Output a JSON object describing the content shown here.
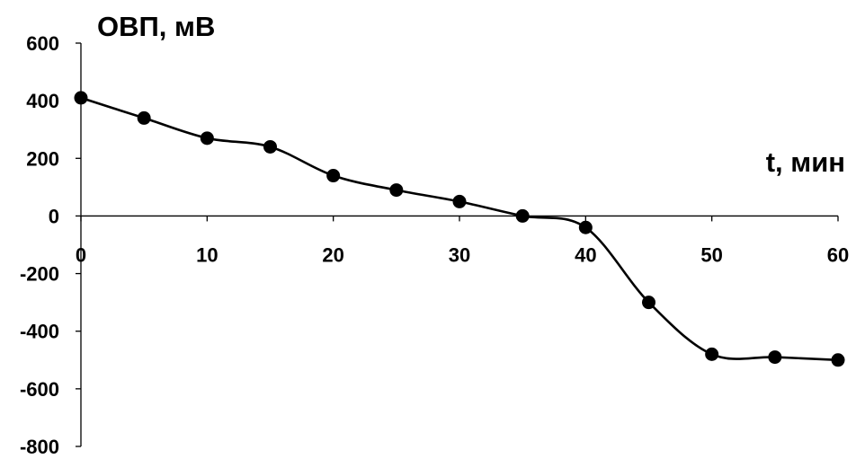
{
  "chart_data": {
    "type": "line",
    "ylabel": "ОВП, мВ",
    "xlabel": "t, мин",
    "xlim": [
      0,
      60
    ],
    "ylim": [
      -800,
      600
    ],
    "x_ticks": [
      0,
      10,
      20,
      30,
      40,
      50,
      60
    ],
    "x_tick_labels": [
      "0",
      "10",
      "20",
      "30",
      "40",
      "50",
      "60"
    ],
    "y_ticks": [
      600,
      400,
      200,
      0,
      -200,
      -400,
      -600,
      -800
    ],
    "y_tick_labels": [
      "600",
      "400",
      "200",
      "0",
      "-200",
      "-400",
      "-600",
      "-800"
    ],
    "grid": false,
    "line_color": "#000000",
    "marker": "filled-circle",
    "series": [
      {
        "x": [
          0,
          5,
          10,
          15,
          20,
          25,
          30,
          35,
          40,
          45,
          50,
          55,
          60
        ],
        "values": [
          410,
          340,
          270,
          240,
          140,
          90,
          50,
          0,
          -40,
          -300,
          -480,
          -490,
          -500
        ]
      }
    ]
  }
}
